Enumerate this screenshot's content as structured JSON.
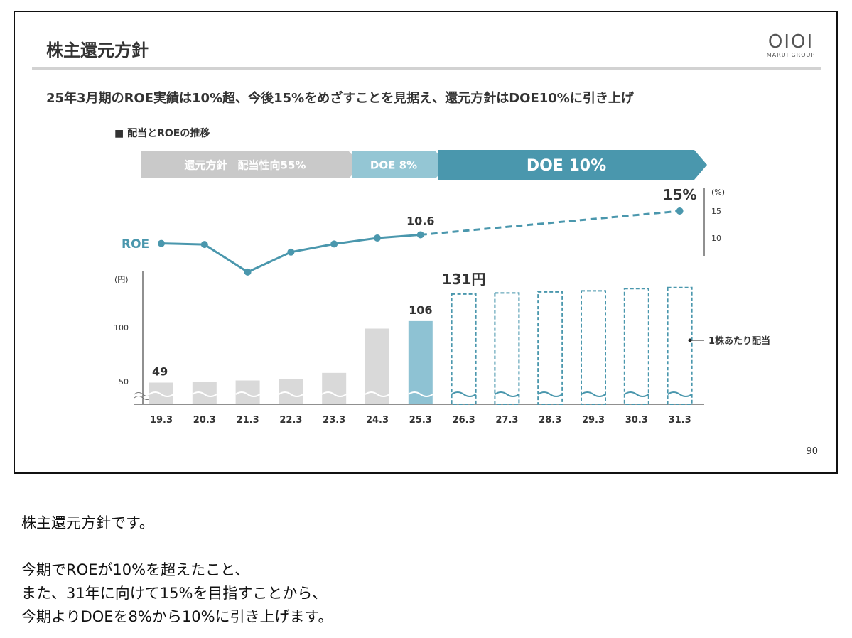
{
  "slide": {
    "title": "株主還元方針",
    "logo_mark": "OIOI",
    "logo_text": "MARUI GROUP",
    "headline": "25年3月期のROE実績は10%超、今後15%をめざすことを見据え、還元方針はDOE10%に引き上げ",
    "chart_heading": "■ 配当とROEの推移",
    "page_number": "90"
  },
  "chart_data": {
    "type": "bar",
    "title": "■ 配当とROEの推移",
    "categories": [
      "19.3",
      "20.3",
      "21.3",
      "22.3",
      "23.3",
      "24.3",
      "25.3",
      "26.3",
      "27.3",
      "28.3",
      "29.3",
      "30.3",
      "31.3"
    ],
    "series": [
      {
        "name": "1株あたり配当",
        "type": "bar",
        "unit": "(円)",
        "values": [
          49,
          50,
          51,
          52,
          58,
          99,
          106,
          131,
          132,
          133,
          134,
          136,
          137
        ],
        "status": [
          "actual",
          "actual",
          "actual",
          "actual",
          "actual",
          "actual",
          "actual",
          "plan",
          "plan",
          "plan",
          "plan",
          "plan",
          "plan"
        ],
        "labels": {
          "0": "49",
          "6": "106",
          "7": "131円"
        }
      },
      {
        "name": "ROE",
        "type": "line",
        "unit": "(%)",
        "values": [
          9.0,
          8.8,
          3.7,
          7.4,
          8.9,
          10.0,
          10.6,
          null,
          null,
          null,
          null,
          null,
          15.0
        ],
        "projection_from_index": 6,
        "labels": {
          "6": "10.6",
          "12": "15%"
        }
      }
    ],
    "bar_axis": {
      "label": "(円)",
      "ticks": [
        50,
        100
      ],
      "broken_axis": true
    },
    "roe_axis": {
      "label": "(%)",
      "ticks": [
        15,
        10
      ]
    },
    "policy_bands": [
      {
        "label": "還元方針　配当性向55%",
        "from": "19.3",
        "to": "23.3",
        "color": "#c9c9c9"
      },
      {
        "label": "DOE 8%",
        "from": "24.3",
        "to": "25.3",
        "color": "#94c6d4"
      },
      {
        "label": "DOE 10%",
        "from": "26.3",
        "to": "31.3",
        "color": "#4a97ad"
      }
    ],
    "colors": {
      "bar_actual": "#d9d9d9",
      "bar_latest": "#8ec2d3",
      "plan": "#4a97ad",
      "roe_line": "#4a97ad"
    }
  },
  "narration": {
    "line1": "株主還元方針です。",
    "line2": "今期でROEが10%を超えたこと、",
    "line3": "また、31年に向けて15%を目指すことから、",
    "line4": "今期よりDOEを8%から10%に引き上げます。"
  }
}
